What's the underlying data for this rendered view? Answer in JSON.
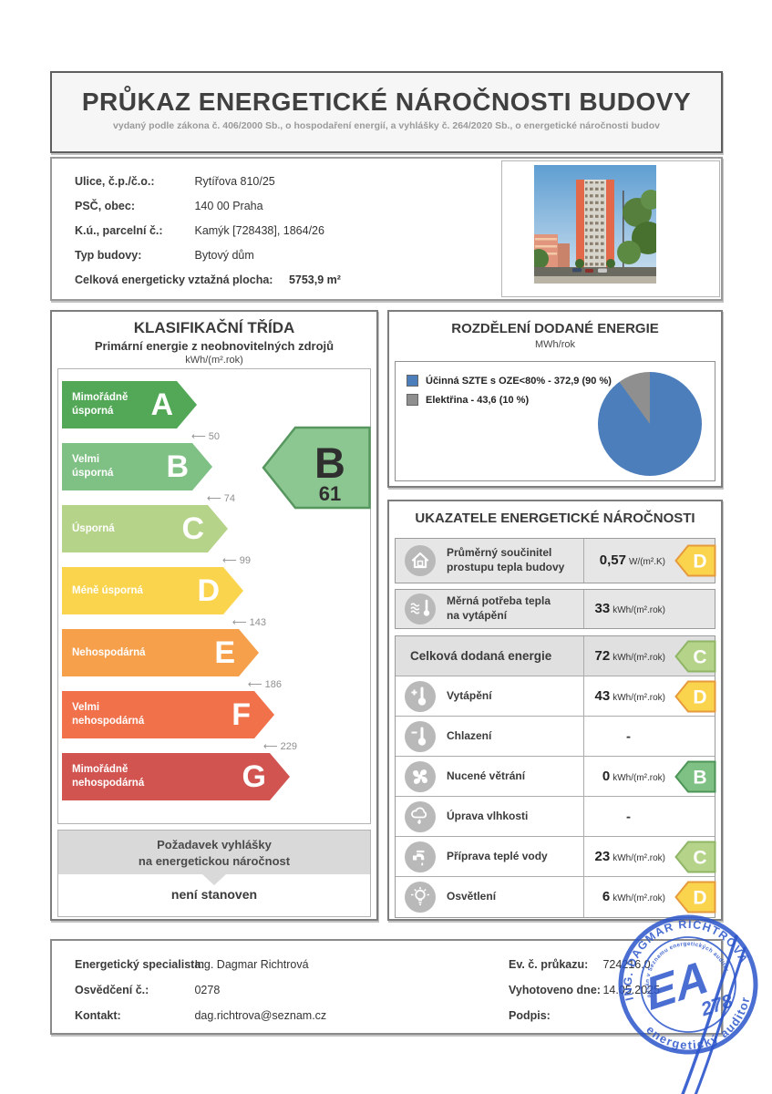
{
  "header": {
    "title": "PRŮKAZ ENERGETICKÉ NÁROČNOSTI BUDOVY",
    "subtitle": "vydaný podle zákona č. 406/2000 Sb., o hospodaření energií, a vyhlášky č. 264/2020 Sb., o energetické náročnosti budov"
  },
  "building": {
    "fields": [
      {
        "label": "Ulice, č.p./č.o.:",
        "value": "Rytířova 810/25"
      },
      {
        "label": "PSČ, obec:",
        "value": "140 00 Praha"
      },
      {
        "label": "K.ú., parcelní č.:",
        "value": "Kamýk [728438], 1864/26"
      },
      {
        "label": "Typ budovy:",
        "value": "Bytový dům"
      }
    ],
    "area_label": "Celková energeticky vztažná plocha:",
    "area_value": "5753,9 m²"
  },
  "classification": {
    "title": "KLASIFIKAČNÍ TŘÍDA",
    "subtitle": "Primární energie z neobnovitelných zdrojů",
    "unit": "kWh/(m².rok)",
    "classes": [
      {
        "letter": "A",
        "label": "Mimořádně\núsporná",
        "threshold": "50"
      },
      {
        "letter": "B",
        "label": "Velmi\núsporná",
        "threshold": "74"
      },
      {
        "letter": "C",
        "label": "Úsporná",
        "threshold": "99"
      },
      {
        "letter": "D",
        "label": "Méně úsporná",
        "threshold": "143"
      },
      {
        "letter": "E",
        "label": "Nehospodárná",
        "threshold": "186"
      },
      {
        "letter": "F",
        "label": "Velmi\nnehospodárná",
        "threshold": "229"
      },
      {
        "letter": "G",
        "label": "Mimořádně\nnehospodárná",
        "threshold": null
      }
    ],
    "colors": {
      "A": "#53a857",
      "B": "#7fc084",
      "C": "#b6d38a",
      "D": "#fbd44e",
      "E": "#f6a04c",
      "F": "#f1714b",
      "G": "#d15450"
    },
    "rating": {
      "letter": "B",
      "value": "61",
      "fill": "#8cc791",
      "stroke": "#57975f"
    }
  },
  "requirement": {
    "title_line1": "Požadavek vyhlášky",
    "title_line2": "na energetickou náročnost",
    "value": "není stanoven"
  },
  "distribution": {
    "title": "ROZDĚLENÍ DODANÉ ENERGIE",
    "unit": "MWh/rok",
    "legend": [
      {
        "label": "Účinná SZTE s OZE<80% - 372,9 (90 %)",
        "color": "#4d7ebc"
      },
      {
        "label": "Elektřina - 43,6 (10 %)",
        "color": "#8f8f8f"
      }
    ],
    "chart_data": {
      "type": "pie",
      "labels": [
        "Účinná SZTE s OZE<80%",
        "Elektřina"
      ],
      "values": [
        372.9,
        43.6
      ],
      "percent": [
        90,
        10
      ],
      "colors": [
        "#4d7ebc",
        "#8f8f8f"
      ],
      "unit": "MWh/rok",
      "legend_position": "left"
    }
  },
  "indicators": {
    "title": "UKAZATELE ENERGETICKÉ NÁROČNOSTI",
    "badge_colors": {
      "B": {
        "fill": "#7fc084",
        "stroke": "#4c9557"
      },
      "C": {
        "fill": "#b6d38a",
        "stroke": "#8fb566"
      },
      "D": {
        "fill": "#fbd44e",
        "stroke": "#e79a3c"
      }
    },
    "rows": [
      {
        "icon": "building-heat-loss-icon",
        "label": "Průměrný součinitel\nprostupu tepla budovy",
        "value": "0,57",
        "unit": "W/(m².K)",
        "badge": "D",
        "group": "solo1"
      },
      {
        "icon": "heating-need-icon",
        "label": "Měrná potřeba tepla\nna vytápění",
        "value": "33",
        "unit": "kWh/(m².rok)",
        "badge": null,
        "group": "solo2"
      },
      {
        "icon": null,
        "label": "Celková dodaná energie",
        "value": "72",
        "unit": "kWh/(m².rok)",
        "badge": "C",
        "group": "grid",
        "gray": true
      },
      {
        "icon": "heating-icon",
        "label": "Vytápění",
        "value": "43",
        "unit": "kWh/(m².rok)",
        "badge": "D",
        "group": "grid"
      },
      {
        "icon": "cooling-icon",
        "label": "Chlazení",
        "value": "-",
        "unit": "",
        "badge": null,
        "group": "grid"
      },
      {
        "icon": "ventilation-icon",
        "label": "Nucené větrání",
        "value": "0",
        "unit": "kWh/(m².rok)",
        "badge": "B",
        "group": "grid"
      },
      {
        "icon": "humidity-icon",
        "label": "Úprava vlhkosti",
        "value": "-",
        "unit": "",
        "badge": null,
        "group": "grid"
      },
      {
        "icon": "hot-water-icon",
        "label": "Příprava teplé vody",
        "value": "23",
        "unit": "kWh/(m².rok)",
        "badge": "C",
        "group": "grid"
      },
      {
        "icon": "lighting-icon",
        "label": "Osvětlení",
        "value": "6",
        "unit": "kWh/(m².rok)",
        "badge": "D",
        "group": "grid"
      }
    ]
  },
  "footer": {
    "left": [
      {
        "label": "Energetický specialista:",
        "value": "Ing. Dagmar Richtrová"
      },
      {
        "label": "Osvědčení č.:",
        "value": "0278"
      },
      {
        "label": "Kontakt:",
        "value": "dag.richtrova@seznam.cz"
      }
    ],
    "right": [
      {
        "label": "Ev. č. průkazu:",
        "value": "724216.0"
      },
      {
        "label": "Vyhotoveno dne:",
        "value": "14.05.2025"
      },
      {
        "label": "Podpis:",
        "value": ""
      }
    ]
  },
  "stamp": {
    "ring_top": "ING. DAGMAR RICHTROVÁ",
    "ring_bottom": "energetický auditor",
    "ring_inner": "zapsán v Seznamu energetických auditorů",
    "monogram": "EA",
    "number": "278",
    "color": "#2b55cb"
  }
}
